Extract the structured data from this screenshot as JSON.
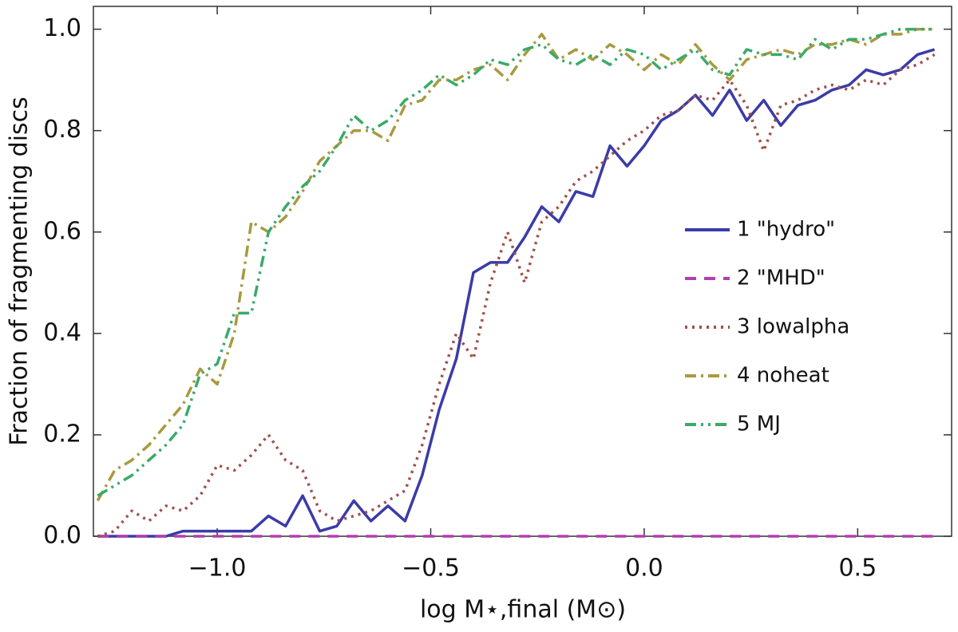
{
  "chart_data": {
    "type": "line",
    "x_label": "log M⋆,final (M⊙)",
    "y_label": "Fraction of fragmenting discs",
    "xlim": [
      -1.29,
      0.72
    ],
    "ylim": [
      0,
      1.045
    ],
    "xticks": [
      {
        "value": -1.0,
        "label": "−1.0"
      },
      {
        "value": -0.5,
        "label": "−0.5"
      },
      {
        "value": 0.0,
        "label": "0.0"
      },
      {
        "value": 0.5,
        "label": "0.5"
      }
    ],
    "yticks": [
      {
        "value": 0,
        "label": "0.0"
      },
      {
        "value": 0.2,
        "label": "0.2"
      },
      {
        "value": 0.4,
        "label": "0.4"
      },
      {
        "value": 0.6,
        "label": "0.6"
      },
      {
        "value": 0.8,
        "label": "0.8"
      },
      {
        "value": 1.0,
        "label": "1.0"
      }
    ],
    "legend": "center right",
    "x": [
      -1.28,
      -1.24,
      -1.2,
      -1.16,
      -1.12,
      -1.08,
      -1.04,
      -1.0,
      -0.96,
      -0.92,
      -0.88,
      -0.84,
      -0.8,
      -0.76,
      -0.72,
      -0.68,
      -0.64,
      -0.6,
      -0.56,
      -0.52,
      -0.48,
      -0.44,
      -0.4,
      -0.36,
      -0.32,
      -0.28,
      -0.24,
      -0.2,
      -0.16,
      -0.12,
      -0.08,
      -0.04,
      0.0,
      0.04,
      0.08,
      0.12,
      0.16,
      0.2,
      0.24,
      0.28,
      0.32,
      0.36,
      0.4,
      0.44,
      0.48,
      0.52,
      0.56,
      0.6,
      0.64,
      0.68
    ],
    "series": [
      {
        "name": "1 \"hydro\"",
        "color": "#3b3ba8",
        "dash": "solid",
        "values": [
          0,
          0,
          0,
          0,
          0,
          0.01,
          0.01,
          0.01,
          0.01,
          0.01,
          0.04,
          0.02,
          0.08,
          0.01,
          0.02,
          0.07,
          0.03,
          0.06,
          0.03,
          0.12,
          0.25,
          0.35,
          0.52,
          0.54,
          0.54,
          0.59,
          0.65,
          0.62,
          0.68,
          0.67,
          0.77,
          0.73,
          0.77,
          0.82,
          0.84,
          0.87,
          0.83,
          0.88,
          0.82,
          0.86,
          0.81,
          0.85,
          0.86,
          0.88,
          0.89,
          0.92,
          0.91,
          0.92,
          0.95,
          0.96
        ]
      },
      {
        "name": "2 \"MHD\"",
        "color": "#b040b0",
        "dash": "dashed",
        "values": [
          0,
          0,
          0,
          0,
          0,
          0,
          0,
          0,
          0,
          0,
          0,
          0,
          0,
          0,
          0,
          0,
          0,
          0,
          0,
          0,
          0,
          0,
          0,
          0,
          0,
          0,
          0,
          0,
          0,
          0,
          0,
          0,
          0,
          0,
          0,
          0,
          0,
          0,
          0,
          0,
          0,
          0,
          0,
          0,
          0,
          0,
          0,
          0,
          0,
          0
        ]
      },
      {
        "name": "3 lowalpha",
        "color": "#a0504a",
        "dash": "dotted",
        "values": [
          0,
          0.01,
          0.05,
          0.03,
          0.06,
          0.05,
          0.08,
          0.14,
          0.13,
          0.16,
          0.2,
          0.15,
          0.13,
          0.05,
          0.03,
          0.04,
          0.05,
          0.07,
          0.09,
          0.18,
          0.3,
          0.4,
          0.35,
          0.5,
          0.6,
          0.5,
          0.62,
          0.65,
          0.7,
          0.72,
          0.75,
          0.78,
          0.8,
          0.83,
          0.84,
          0.87,
          0.86,
          0.9,
          0.85,
          0.76,
          0.85,
          0.86,
          0.88,
          0.89,
          0.88,
          0.9,
          0.89,
          0.92,
          0.93,
          0.95
        ]
      },
      {
        "name": "4 noheat",
        "color": "#a89a40",
        "dash": "dashdot",
        "values": [
          0.07,
          0.13,
          0.15,
          0.18,
          0.22,
          0.26,
          0.33,
          0.3,
          0.4,
          0.62,
          0.6,
          0.63,
          0.68,
          0.74,
          0.77,
          0.8,
          0.8,
          0.78,
          0.85,
          0.86,
          0.9,
          0.9,
          0.92,
          0.93,
          0.9,
          0.95,
          0.99,
          0.94,
          0.96,
          0.94,
          0.97,
          0.95,
          0.92,
          0.95,
          0.93,
          0.97,
          0.93,
          0.9,
          0.94,
          0.95,
          0.96,
          0.95,
          0.97,
          0.97,
          0.98,
          0.97,
          0.99,
          0.99,
          1.0,
          1.0
        ]
      },
      {
        "name": "5 MJ",
        "color": "#3aaa6a",
        "dash": "dashdotdot",
        "values": [
          0.08,
          0.1,
          0.12,
          0.15,
          0.18,
          0.22,
          0.32,
          0.34,
          0.44,
          0.44,
          0.6,
          0.65,
          0.69,
          0.72,
          0.77,
          0.83,
          0.8,
          0.82,
          0.86,
          0.88,
          0.91,
          0.89,
          0.91,
          0.94,
          0.93,
          0.96,
          0.97,
          0.94,
          0.93,
          0.95,
          0.93,
          0.96,
          0.95,
          0.92,
          0.94,
          0.96,
          0.92,
          0.91,
          0.96,
          0.95,
          0.95,
          0.94,
          0.98,
          0.96,
          0.98,
          0.98,
          0.99,
          1.0,
          1.0,
          1.0
        ]
      }
    ]
  }
}
